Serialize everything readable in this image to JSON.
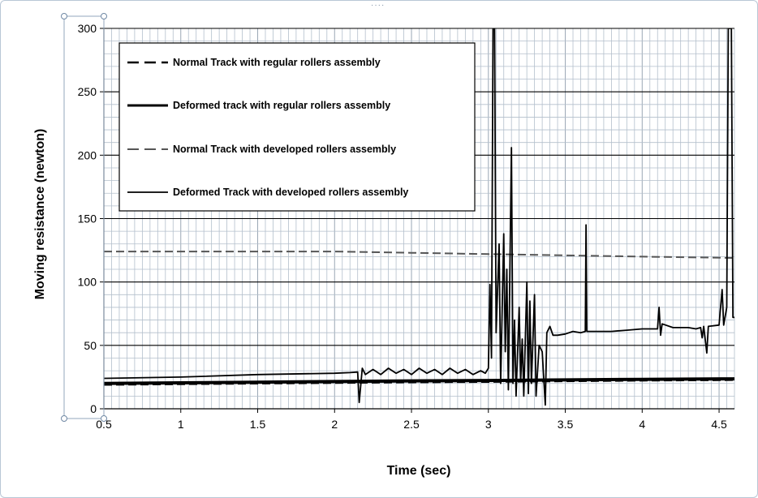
{
  "chart_data": {
    "type": "line",
    "title": "",
    "xlabel": "Time (sec)",
    "ylabel": "Moving resistance (newton)",
    "xlim": [
      0.5,
      4.6
    ],
    "ylim": [
      0,
      300
    ],
    "x_ticks": [
      "0.5",
      "1",
      "1.5",
      "2",
      "2.5",
      "3",
      "3.5",
      "4",
      "4.5"
    ],
    "y_ticks": [
      "0",
      "50",
      "100",
      "150",
      "200",
      "250",
      "300"
    ],
    "grid": true,
    "legend_position": "top-left inside plot",
    "series": [
      {
        "name": "Normal Track  with regular rollers assembly",
        "style": "dashed",
        "width": 2.5,
        "color": "#000000",
        "points": [
          [
            0.5,
            19
          ],
          [
            1.0,
            19.5
          ],
          [
            1.5,
            20
          ],
          [
            2.0,
            20.5
          ],
          [
            2.5,
            21
          ],
          [
            3.0,
            21.3
          ],
          [
            3.5,
            21.8
          ],
          [
            4.0,
            22.3
          ],
          [
            4.6,
            22.8
          ]
        ]
      },
      {
        "name": "Deformed track with regular rollers assembly",
        "style": "solid",
        "width": 4,
        "color": "#000000",
        "points": [
          [
            0.5,
            20
          ],
          [
            1.0,
            20.5
          ],
          [
            1.5,
            21
          ],
          [
            2.0,
            21.5
          ],
          [
            2.5,
            22
          ],
          [
            3.0,
            22.3
          ],
          [
            3.5,
            22.8
          ],
          [
            4.0,
            23.2
          ],
          [
            4.6,
            23.6
          ]
        ]
      },
      {
        "name": "Normal Track  with developed rollers assembly",
        "style": "dashed",
        "width": 2,
        "color": "#555555",
        "points": [
          [
            0.5,
            124
          ],
          [
            1.0,
            124
          ],
          [
            1.5,
            124
          ],
          [
            2.0,
            124
          ],
          [
            2.5,
            123
          ],
          [
            3.0,
            122
          ],
          [
            3.5,
            121
          ],
          [
            4.0,
            120
          ],
          [
            4.6,
            119
          ]
        ]
      },
      {
        "name": "Deformed Track with developed rollers assembly",
        "style": "solid",
        "width": 1.8,
        "color": "#000000",
        "points": [
          [
            0.5,
            24
          ],
          [
            1.0,
            25
          ],
          [
            1.5,
            27
          ],
          [
            2.0,
            28
          ],
          [
            2.1,
            28.5
          ],
          [
            2.15,
            29
          ],
          [
            2.16,
            5
          ],
          [
            2.18,
            32
          ],
          [
            2.2,
            27
          ],
          [
            2.25,
            31
          ],
          [
            2.3,
            27
          ],
          [
            2.35,
            32
          ],
          [
            2.4,
            28
          ],
          [
            2.45,
            31
          ],
          [
            2.5,
            27
          ],
          [
            2.55,
            32
          ],
          [
            2.6,
            28
          ],
          [
            2.65,
            31
          ],
          [
            2.7,
            27
          ],
          [
            2.75,
            32
          ],
          [
            2.8,
            28
          ],
          [
            2.85,
            31
          ],
          [
            2.9,
            27
          ],
          [
            2.95,
            30
          ],
          [
            2.98,
            28
          ],
          [
            3.0,
            32
          ],
          [
            3.01,
            98
          ],
          [
            3.02,
            40
          ],
          [
            3.03,
            300
          ],
          [
            3.04,
            300
          ],
          [
            3.05,
            60
          ],
          [
            3.07,
            130
          ],
          [
            3.08,
            20
          ],
          [
            3.1,
            138
          ],
          [
            3.11,
            45
          ],
          [
            3.12,
            110
          ],
          [
            3.13,
            15
          ],
          [
            3.15,
            206
          ],
          [
            3.16,
            20
          ],
          [
            3.17,
            70
          ],
          [
            3.18,
            10
          ],
          [
            3.2,
            80
          ],
          [
            3.21,
            22
          ],
          [
            3.22,
            55
          ],
          [
            3.23,
            10
          ],
          [
            3.25,
            100
          ],
          [
            3.26,
            12
          ],
          [
            3.27,
            85
          ],
          [
            3.28,
            20
          ],
          [
            3.3,
            90
          ],
          [
            3.31,
            10
          ],
          [
            3.33,
            50
          ],
          [
            3.35,
            45
          ],
          [
            3.37,
            3
          ],
          [
            3.38,
            60
          ],
          [
            3.4,
            65
          ],
          [
            3.42,
            58
          ],
          [
            3.45,
            58
          ],
          [
            3.5,
            59
          ],
          [
            3.55,
            61
          ],
          [
            3.6,
            60
          ],
          [
            3.63,
            61
          ],
          [
            3.635,
            145
          ],
          [
            3.64,
            61
          ],
          [
            3.7,
            61
          ],
          [
            3.8,
            61
          ],
          [
            3.9,
            62
          ],
          [
            4.0,
            63
          ],
          [
            4.1,
            63
          ],
          [
            4.11,
            80
          ],
          [
            4.12,
            58
          ],
          [
            4.13,
            67
          ],
          [
            4.2,
            64
          ],
          [
            4.3,
            64
          ],
          [
            4.35,
            63
          ],
          [
            4.38,
            64
          ],
          [
            4.39,
            56
          ],
          [
            4.4,
            65
          ],
          [
            4.42,
            44
          ],
          [
            4.43,
            65
          ],
          [
            4.5,
            66
          ],
          [
            4.52,
            94
          ],
          [
            4.53,
            66
          ],
          [
            4.55,
            80
          ],
          [
            4.56,
            300
          ],
          [
            4.58,
            300
          ],
          [
            4.59,
            72
          ],
          [
            4.6,
            72
          ]
        ]
      }
    ]
  }
}
